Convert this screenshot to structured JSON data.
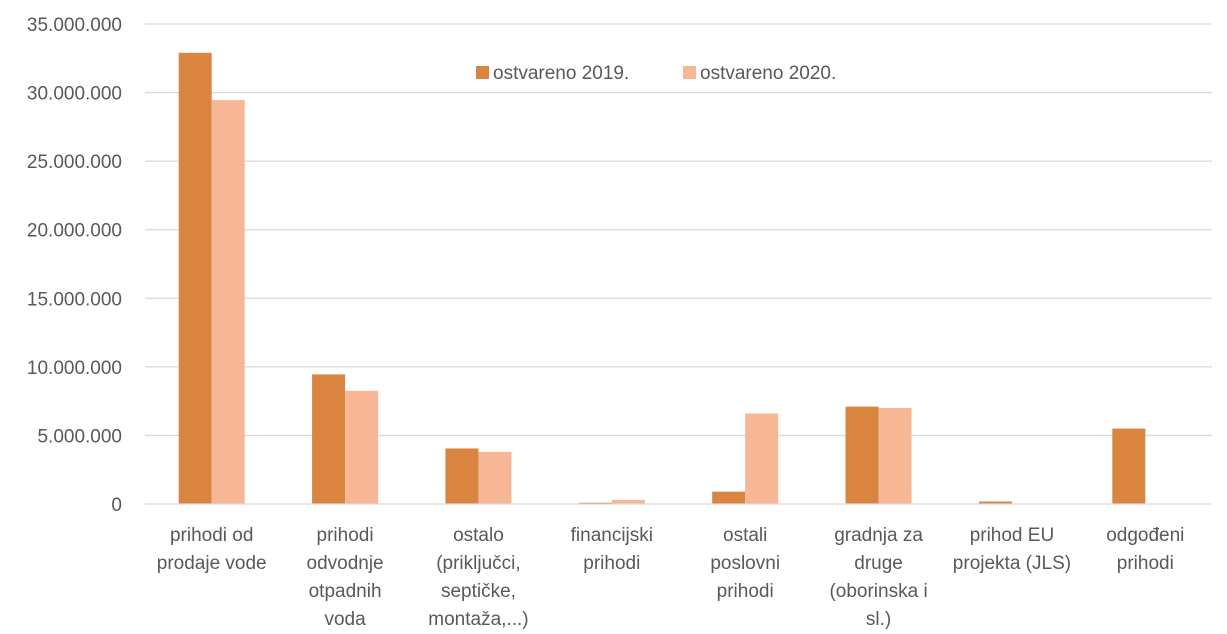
{
  "chart_data": {
    "type": "bar",
    "title": "",
    "xlabel": "",
    "ylabel": "",
    "ylim": [
      0,
      35000000
    ],
    "yticks": [
      "0",
      "5.000.000",
      "10.000.000",
      "15.000.000",
      "20.000.000",
      "25.000.000",
      "30.000.000",
      "35.000.000"
    ],
    "ytick_values": [
      0,
      5000000,
      10000000,
      15000000,
      20000000,
      25000000,
      30000000,
      35000000
    ],
    "grid": true,
    "legend_position": "top-center",
    "categories": [
      [
        "prihodi od",
        "prodaje vode"
      ],
      [
        "prihodi",
        "odvodnje",
        "otpadnih",
        "voda"
      ],
      [
        "ostalo",
        "(priključci,",
        "septičke,",
        "montaža,...)"
      ],
      [
        "financijski",
        "prihodi"
      ],
      [
        "ostali",
        "poslovni",
        "prihodi"
      ],
      [
        "gradnja za",
        "druge",
        "(oborinska i",
        "sl.)"
      ],
      [
        "prihod EU",
        "projekta (JLS)"
      ],
      [
        "odgođeni",
        "prihodi"
      ]
    ],
    "series": [
      {
        "name": "ostvareno 2019.",
        "color": "#d9843f",
        "values": [
          32900000,
          9450000,
          4050000,
          90000,
          900000,
          7100000,
          180000,
          5500000
        ]
      },
      {
        "name": "ostvareno 2020.",
        "color": "#f8b794",
        "values": [
          29450000,
          8250000,
          3800000,
          300000,
          6600000,
          7000000,
          0,
          0
        ]
      }
    ]
  }
}
